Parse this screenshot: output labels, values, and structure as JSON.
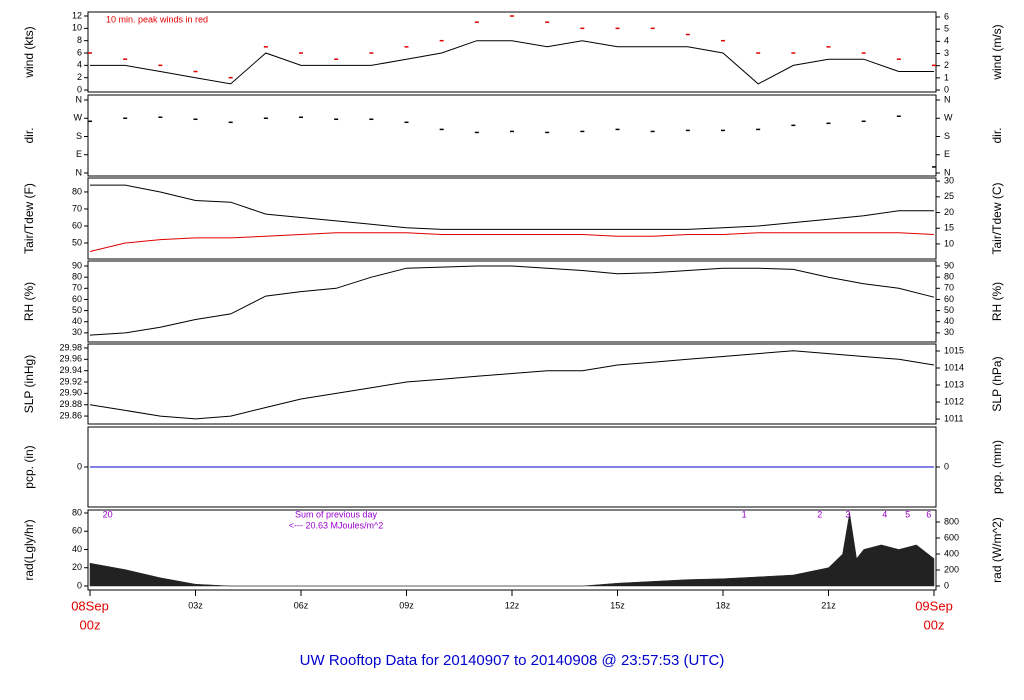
{
  "caption": "UW Rooftop Data for 20140907  to  20140908 @ 23:57:53  (UTC)",
  "chart_data": [
    {
      "type": "line",
      "ylabel": "wind (kts)",
      "y2label": "wind (m/s)",
      "annotation": "10 min. peak winds in red",
      "xlim": [
        0,
        24
      ],
      "ylim": [
        -0.32,
        12.65
      ],
      "yticks": [
        0,
        2,
        4,
        6,
        8,
        10,
        12
      ],
      "y2lim": [
        -0.16,
        6.41
      ],
      "y2ticks": [
        0,
        1,
        2,
        3,
        4,
        5,
        6
      ],
      "x": [
        0,
        1,
        2,
        3,
        4,
        5,
        6,
        7,
        8,
        9,
        10,
        11,
        12,
        13,
        14,
        15,
        16,
        17,
        18,
        19,
        20,
        21,
        22,
        23,
        24
      ],
      "series": [
        {
          "name": "wind",
          "style": "line",
          "color": "#000000",
          "values": [
            4,
            4,
            3,
            2,
            1,
            6,
            4,
            4,
            4,
            5,
            6,
            8,
            8,
            7,
            8,
            7,
            7,
            7,
            6,
            1,
            4,
            5,
            5,
            3,
            3
          ]
        },
        {
          "name": "peak",
          "style": "dash",
          "color": "#e00000",
          "values": [
            6,
            5,
            4,
            3,
            2,
            7,
            6,
            5,
            6,
            7,
            8,
            11,
            12,
            11,
            10,
            10,
            10,
            9,
            8,
            6,
            6,
            7,
            6,
            5,
            4
          ]
        }
      ]
    },
    {
      "type": "scatter",
      "ylabel": "dir.",
      "y2label": "dir.",
      "xlim": [
        0,
        24
      ],
      "ylim": [
        -14.8,
        384.7
      ],
      "yticks": [
        {
          "value": 360,
          "label": "N"
        },
        {
          "value": 270,
          "label": "W"
        },
        {
          "value": 180,
          "label": "S"
        },
        {
          "value": 90,
          "label": "E"
        },
        {
          "value": 0,
          "label": "N"
        }
      ],
      "y2lim": [
        -14.8,
        384.7
      ],
      "y2ticks": [
        {
          "value": 360,
          "label": "N"
        },
        {
          "value": 270,
          "label": "W"
        },
        {
          "value": 180,
          "label": "S"
        },
        {
          "value": 90,
          "label": "E"
        },
        {
          "value": 0,
          "label": "N"
        }
      ],
      "x": [
        0,
        1,
        2,
        3,
        4,
        5,
        6,
        7,
        8,
        9,
        10,
        11,
        12,
        13,
        14,
        15,
        16,
        17,
        18,
        19,
        20,
        21,
        22,
        23,
        24
      ],
      "series": [
        {
          "name": "direction",
          "style": "dash",
          "color": "#000000",
          "values": [
            255,
            270,
            275,
            265,
            250,
            270,
            275,
            265,
            265,
            250,
            215,
            200,
            205,
            200,
            205,
            215,
            205,
            210,
            210,
            215,
            235,
            245,
            255,
            280,
            30
          ]
        }
      ]
    },
    {
      "type": "line",
      "ylabel": "Tair/Tdew (F)",
      "y2label": "Tair/Tdew (C)",
      "xlim": [
        0,
        24
      ],
      "ylim": [
        40.6,
        88.2
      ],
      "yticks": [
        50,
        60,
        70,
        80
      ],
      "y2lim": [
        5.2,
        31
      ],
      "y2ticks": [
        10,
        15,
        20,
        25,
        30
      ],
      "x": [
        0,
        1,
        2,
        3,
        4,
        5,
        6,
        7,
        8,
        9,
        10,
        11,
        12,
        13,
        14,
        15,
        16,
        17,
        18,
        19,
        20,
        21,
        22,
        23,
        24
      ],
      "series": [
        {
          "name": "Tair",
          "style": "line",
          "color": "#000000",
          "values": [
            84,
            84,
            80,
            75,
            74,
            67,
            65,
            63,
            61,
            59,
            58,
            58,
            58,
            58,
            58,
            58,
            58,
            58,
            59,
            60,
            62,
            64,
            66,
            69,
            69
          ]
        },
        {
          "name": "Tdew",
          "style": "line",
          "color": "#e00000",
          "values": [
            45,
            50,
            52,
            53,
            53,
            54,
            55,
            56,
            56,
            56,
            55,
            55,
            55,
            55,
            55,
            54,
            54,
            55,
            55,
            56,
            56,
            56,
            56,
            56,
            55
          ]
        }
      ]
    },
    {
      "type": "line",
      "ylabel": "RH (%)",
      "y2label": "RH (%)",
      "xlim": [
        0,
        24
      ],
      "ylim": [
        21.8,
        94.5
      ],
      "yticks": [
        30,
        40,
        50,
        60,
        70,
        80,
        90
      ],
      "y2lim": [
        21.8,
        94.5
      ],
      "y2ticks": [
        30,
        40,
        50,
        60,
        70,
        80,
        90
      ],
      "x": [
        0,
        1,
        2,
        3,
        4,
        5,
        6,
        7,
        8,
        9,
        10,
        11,
        12,
        13,
        14,
        15,
        16,
        17,
        18,
        19,
        20,
        21,
        22,
        23,
        24
      ],
      "series": [
        {
          "name": "RH",
          "style": "line",
          "color": "#000000",
          "values": [
            28,
            30,
            35,
            42,
            47,
            63,
            67,
            70,
            80,
            88,
            89,
            90,
            90,
            88,
            86,
            83,
            84,
            86,
            88,
            88,
            87,
            80,
            74,
            70,
            62
          ]
        }
      ]
    },
    {
      "type": "line",
      "ylabel": "SLP (inHg)",
      "y2label": "SLP (hPa)",
      "xlim": [
        0,
        24
      ],
      "ylim": [
        29.846,
        29.987
      ],
      "yticks": [
        29.86,
        29.88,
        {
          "value": 29.9,
          "label": "29.90"
        },
        29.92,
        29.94,
        29.96,
        29.98
      ],
      "y2lim": [
        1010.71,
        1015.41
      ],
      "y2ticks": [
        1011,
        1012,
        1013,
        1014,
        1015
      ],
      "x": [
        0,
        1,
        2,
        3,
        4,
        5,
        6,
        7,
        8,
        9,
        10,
        11,
        12,
        13,
        14,
        15,
        16,
        17,
        18,
        19,
        20,
        21,
        22,
        23,
        24
      ],
      "series": [
        {
          "name": "SLP",
          "style": "line",
          "color": "#000000",
          "values": [
            29.88,
            29.87,
            29.86,
            29.855,
            29.86,
            29.875,
            29.89,
            29.9,
            29.91,
            29.92,
            29.925,
            29.93,
            29.935,
            29.94,
            29.94,
            29.95,
            29.955,
            29.96,
            29.965,
            29.97,
            29.975,
            29.97,
            29.965,
            29.96,
            29.95
          ]
        }
      ]
    },
    {
      "type": "line",
      "ylabel": "pcp. (in)",
      "y2label": "pcp. (mm)",
      "xlim": [
        0,
        24
      ],
      "ylim": [
        -1,
        1
      ],
      "yticks": [
        0
      ],
      "y2lim": [
        -1,
        1
      ],
      "y2ticks": [
        0
      ],
      "x": [
        0,
        24
      ],
      "series": [
        {
          "name": "pcp",
          "style": "line",
          "color": "#0000cc",
          "values": [
            0,
            0
          ]
        }
      ]
    },
    {
      "type": "area",
      "ylabel": "rad(Lgly/hr)",
      "y2label": "rad (W/m^2)",
      "notes": [
        "Sum of previous day",
        "<--- 20.63 MJoules/m^2"
      ],
      "markers": [
        {
          "text": "20",
          "x": 0.5
        },
        {
          "text": "1",
          "x": 18.6
        },
        {
          "text": "2",
          "x": 20.75
        },
        {
          "text": "3",
          "x": 21.55
        },
        {
          "text": "4",
          "x": 22.6
        },
        {
          "text": "5",
          "x": 23.25
        },
        {
          "text": "6",
          "x": 23.85
        }
      ],
      "xlim": [
        0,
        24
      ],
      "ylim": [
        -4.4,
        83.3
      ],
      "yticks": [
        0,
        20,
        40,
        60,
        80
      ],
      "y2lim": [
        -50,
        950
      ],
      "y2ticks": [
        0,
        200,
        400,
        600,
        800
      ],
      "xticks": [
        {
          "value": 0,
          "label": "00z"
        },
        {
          "value": 3,
          "label": "03z"
        },
        {
          "value": 6,
          "label": "06z"
        },
        {
          "value": 9,
          "label": "09z"
        },
        {
          "value": 12,
          "label": "12z"
        },
        {
          "value": 15,
          "label": "15z"
        },
        {
          "value": 18,
          "label": "18z"
        },
        {
          "value": 21,
          "label": "21z"
        },
        {
          "value": 24,
          "label": "00z"
        }
      ],
      "x_dates": [
        "08Sep",
        "09Sep"
      ],
      "x": [
        0,
        1,
        2,
        3,
        4,
        5,
        6,
        7,
        8,
        9,
        10,
        11,
        12,
        13,
        14,
        15,
        16,
        17,
        18,
        19,
        20,
        21,
        21.4,
        21.6,
        21.8,
        22,
        22.5,
        23,
        23.5,
        24
      ],
      "series": [
        {
          "name": "rad",
          "style": "area",
          "color": "#222222",
          "values": [
            25,
            18,
            9,
            2,
            0,
            0,
            0,
            0,
            0,
            0,
            0,
            0,
            0,
            0,
            0,
            3,
            5,
            7,
            8,
            10,
            12,
            20,
            35,
            80,
            30,
            40,
            45,
            40,
            45,
            30
          ]
        }
      ]
    }
  ]
}
